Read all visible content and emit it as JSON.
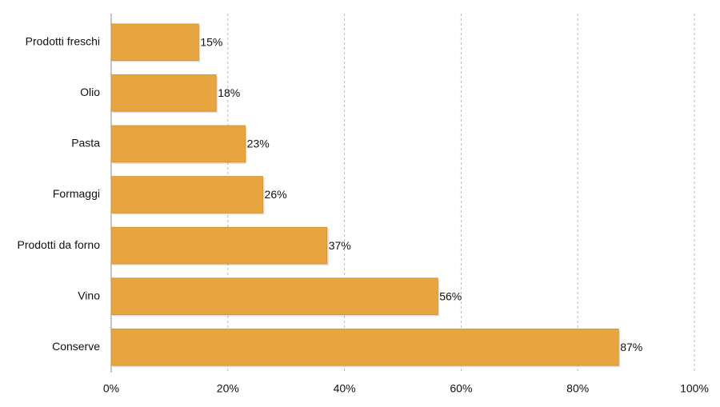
{
  "chart_data": {
    "type": "hbar",
    "categories": [
      "Prodotti freschi",
      "Olio",
      "Pasta",
      "Formaggi",
      "Prodotti da forno",
      "Vino",
      "Conserve"
    ],
    "values": [
      15,
      18,
      23,
      26,
      37,
      56,
      87
    ],
    "value_labels": [
      "15%",
      "18%",
      "23%",
      "26%",
      "37%",
      "56%",
      "87%"
    ],
    "color": "#e8a43e",
    "xlim": [
      0,
      100
    ],
    "xticks": [
      {
        "value": 0,
        "label": "0%"
      },
      {
        "value": 20,
        "label": "20%"
      },
      {
        "value": 40,
        "label": "40%"
      },
      {
        "value": 60,
        "label": "60%"
      },
      {
        "value": 80,
        "label": "80%"
      },
      {
        "value": 100,
        "label": "100%"
      }
    ],
    "grid": true
  }
}
